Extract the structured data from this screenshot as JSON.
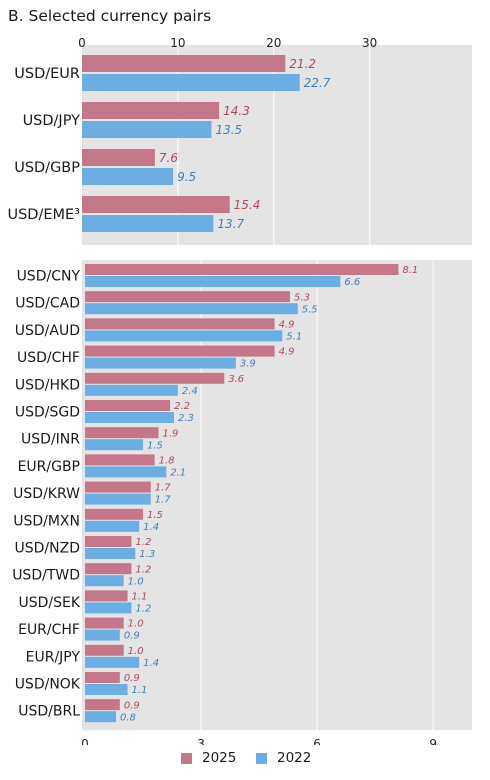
{
  "title": "B. Selected currency pairs",
  "colors": {
    "s2025": "#c5778a",
    "s2022": "#6aaee4",
    "panel_bg": "#e4e4e4",
    "grid": "#ffffff"
  },
  "legend": [
    "2025",
    "2022"
  ],
  "chart_data": [
    {
      "type": "bar",
      "orientation": "horizontal",
      "axis_position": "top",
      "xlim": [
        0,
        39
      ],
      "xticks": [
        0,
        10,
        20,
        30
      ],
      "grid": true,
      "categories": [
        "USD/EUR",
        "USD/JPY",
        "USD/GBP",
        "USD/EME³"
      ],
      "series": [
        {
          "name": "2025",
          "values": [
            21.2,
            14.3,
            7.6,
            15.4
          ]
        },
        {
          "name": "2022",
          "values": [
            22.7,
            13.5,
            9.5,
            13.7
          ]
        }
      ]
    },
    {
      "type": "bar",
      "orientation": "horizontal",
      "axis_position": "bottom",
      "xlim": [
        0,
        9.9
      ],
      "xticks": [
        0,
        3,
        6,
        9
      ],
      "grid": true,
      "categories": [
        "USD/CNY",
        "USD/CAD",
        "USD/AUD",
        "USD/CHF",
        "USD/HKD",
        "USD/SGD",
        "USD/INR",
        "EUR/GBP",
        "USD/KRW",
        "USD/MXN",
        "USD/NZD",
        "USD/TWD",
        "USD/SEK",
        "EUR/CHF",
        "EUR/JPY",
        "USD/NOK",
        "USD/BRL"
      ],
      "series": [
        {
          "name": "2025",
          "values": [
            8.1,
            5.3,
            4.9,
            4.9,
            3.6,
            2.2,
            1.9,
            1.8,
            1.7,
            1.5,
            1.2,
            1.2,
            1.1,
            1.0,
            1.0,
            0.9,
            0.9
          ]
        },
        {
          "name": "2022",
          "values": [
            6.6,
            5.5,
            5.1,
            3.9,
            2.4,
            2.3,
            1.5,
            2.1,
            1.7,
            1.4,
            1.3,
            1.0,
            1.2,
            0.9,
            1.4,
            1.1,
            0.8
          ]
        }
      ]
    }
  ]
}
